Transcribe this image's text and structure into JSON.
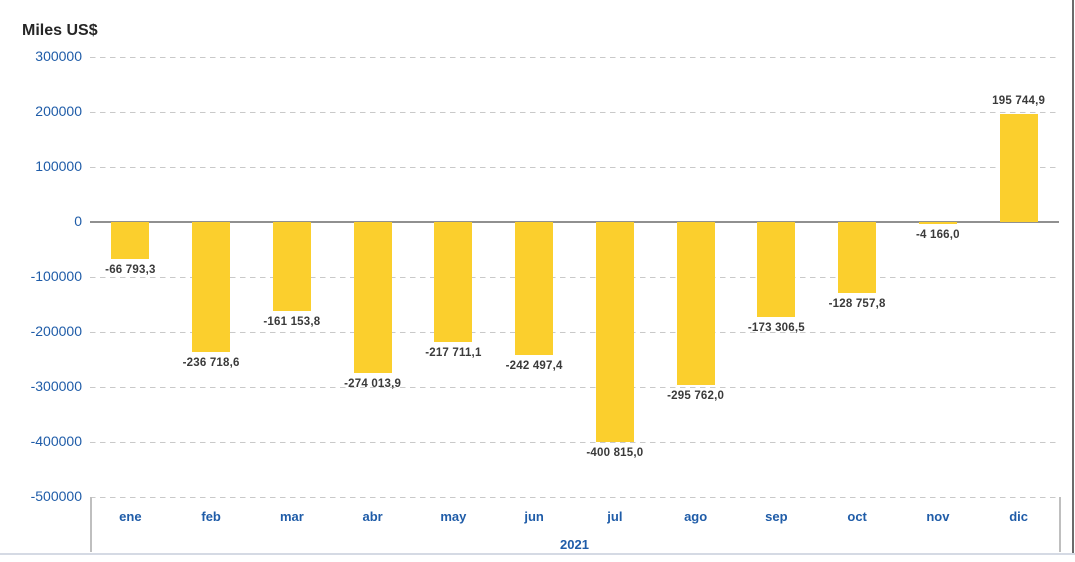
{
  "page": {
    "title": "Miles US$",
    "year_label": "2021"
  },
  "colors": {
    "bar": "#FBCF2D",
    "axis_text": "#1F5CA8",
    "data_label": "#3A3A3A",
    "title_text": "#262626",
    "gridline": "#C9C9C9",
    "zero_line": "#909090",
    "axis_box_border": "#BFBFBF",
    "page_border_right": "#6B6B6B",
    "page_border_bottom": "#D5DAE4"
  },
  "chart_data": {
    "type": "bar",
    "title": "Miles US$",
    "ylabel": "Miles US$",
    "categories": [
      "ene",
      "feb",
      "mar",
      "abr",
      "may",
      "jun",
      "jul",
      "ago",
      "sep",
      "oct",
      "nov",
      "dic"
    ],
    "values": [
      -66793.3,
      -236718.6,
      -161153.8,
      -274013.9,
      -217711.1,
      -242497.4,
      -400815.0,
      -295762.0,
      -173306.5,
      -128757.8,
      -4166.0,
      195744.9
    ],
    "data_labels": [
      "-66 793,3",
      "-236 718,6",
      "-161 153,8",
      "-274 013,9",
      "-217 711,1",
      "-242 497,4",
      "-400 815,0",
      "-295 762,0",
      "-173 306,5",
      "-128 757,8",
      "-4 166,0",
      "195 744,9"
    ],
    "x_group_label": "2021",
    "ylim": [
      -500000,
      300000
    ],
    "ytick_step": 100000,
    "yticks": [
      300000,
      200000,
      100000,
      0,
      -100000,
      -200000,
      -300000,
      -400000,
      -500000
    ],
    "ytick_labels": [
      "300000",
      "200000",
      "100000",
      "0",
      "-100000",
      "-200000",
      "-300000",
      "-400000",
      "-500000"
    ],
    "grid": "horizontal-dashed",
    "legend": "none"
  }
}
